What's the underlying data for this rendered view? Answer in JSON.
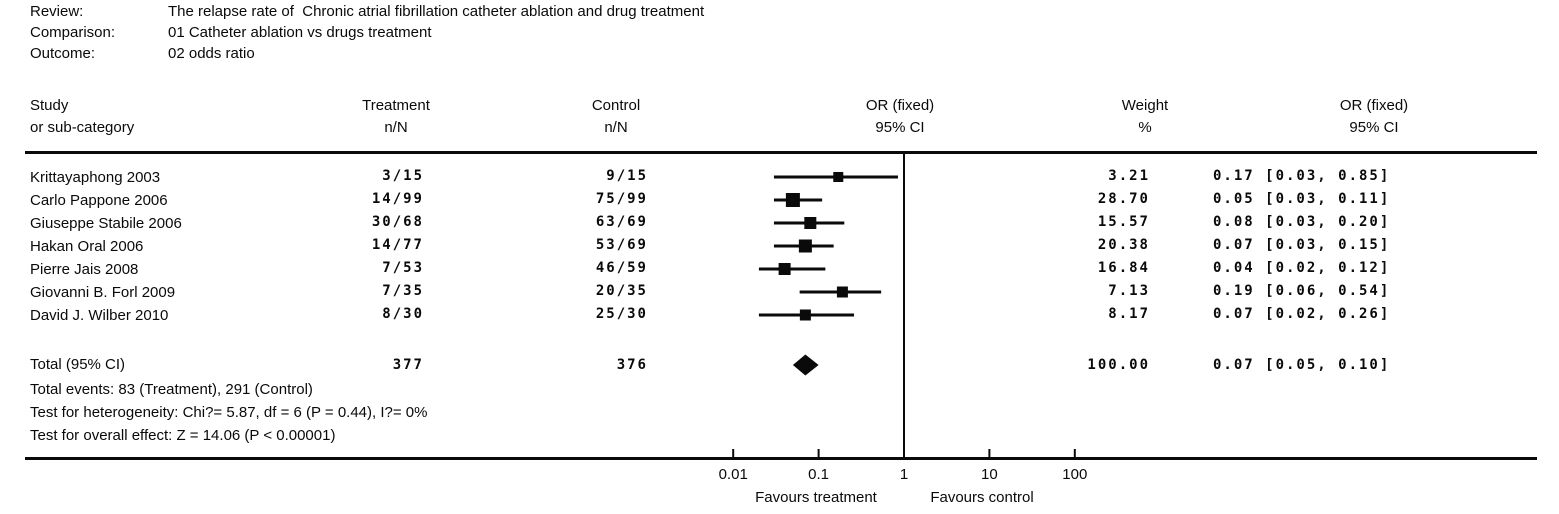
{
  "meta": {
    "review_label": "Review:",
    "review_value": "The relapse rate of  Chronic atrial fibrillation catheter ablation and drug treatment",
    "comparison_label": "Comparison:",
    "comparison_value": "01 Catheter ablation vs drugs treatment",
    "outcome_label": "Outcome:",
    "outcome_value": "02 odds ratio"
  },
  "columns": {
    "study": [
      "Study",
      "or sub-category"
    ],
    "treatment": [
      "Treatment",
      "n/N"
    ],
    "control": [
      "Control",
      "n/N"
    ],
    "or_plot": [
      "OR (fixed)",
      "95% CI"
    ],
    "weight": [
      "Weight",
      "%"
    ],
    "or_text": [
      "OR (fixed)",
      "95% CI"
    ]
  },
  "chart_data": {
    "type": "forest",
    "x_scale": "log10",
    "x_range": [
      0.01,
      100
    ],
    "x_ticks": [
      0.01,
      0.1,
      1,
      10,
      100
    ],
    "x_tick_labels": [
      "0.01",
      "0.1",
      "1",
      "10",
      "100"
    ],
    "no_effect_value": 1,
    "axis_labels": {
      "left": "Favours treatment",
      "right": "Favours control"
    },
    "effect_measure": "OR (fixed) 95% CI",
    "studies": [
      {
        "name": "Krittayaphong 2003",
        "treatment": "3/15",
        "control": "9/15",
        "weight": 3.21,
        "weight_label": "3.21",
        "or": 0.17,
        "ci_low": 0.03,
        "ci_high": 0.85,
        "or_label": "0.17 [0.03, 0.85]"
      },
      {
        "name": "Carlo Pappone 2006",
        "treatment": "14/99",
        "control": "75/99",
        "weight": 28.7,
        "weight_label": "28.70",
        "or": 0.05,
        "ci_low": 0.03,
        "ci_high": 0.11,
        "or_label": "0.05 [0.03, 0.11]"
      },
      {
        "name": "Giuseppe Stabile 2006",
        "treatment": "30/68",
        "control": "63/69",
        "weight": 15.57,
        "weight_label": "15.57",
        "or": 0.08,
        "ci_low": 0.03,
        "ci_high": 0.2,
        "or_label": "0.08 [0.03, 0.20]"
      },
      {
        "name": "Hakan Oral 2006",
        "treatment": "14/77",
        "control": "53/69",
        "weight": 20.38,
        "weight_label": "20.38",
        "or": 0.07,
        "ci_low": 0.03,
        "ci_high": 0.15,
        "or_label": "0.07 [0.03, 0.15]"
      },
      {
        "name": "Pierre Jais 2008",
        "treatment": "7/53",
        "control": "46/59",
        "weight": 16.84,
        "weight_label": "16.84",
        "or": 0.04,
        "ci_low": 0.02,
        "ci_high": 0.12,
        "or_label": "0.04 [0.02, 0.12]"
      },
      {
        "name": "Giovanni B. Forl 2009",
        "treatment": "7/35",
        "control": "20/35",
        "weight": 7.13,
        "weight_label": "7.13",
        "or": 0.19,
        "ci_low": 0.06,
        "ci_high": 0.54,
        "or_label": "0.19 [0.06, 0.54]"
      },
      {
        "name": "David J. Wilber 2010",
        "treatment": "8/30",
        "control": "25/30",
        "weight": 8.17,
        "weight_label": "8.17",
        "or": 0.07,
        "ci_low": 0.02,
        "ci_high": 0.26,
        "or_label": "0.07 [0.02, 0.26]"
      }
    ],
    "total": {
      "label": "Total (95% CI)",
      "treatment_n": "377",
      "control_n": "376",
      "weight_label": "100.00",
      "or": 0.07,
      "ci_low": 0.05,
      "ci_high": 0.1,
      "or_label": "0.07 [0.05, 0.10]"
    },
    "footnotes": [
      "Total events: 83 (Treatment), 291 (Control)",
      "Test for heterogeneity: Chi?= 5.87, df = 6 (P = 0.44), I?= 0%",
      "Test for overall effect: Z = 14.06 (P < 0.00001)"
    ]
  }
}
